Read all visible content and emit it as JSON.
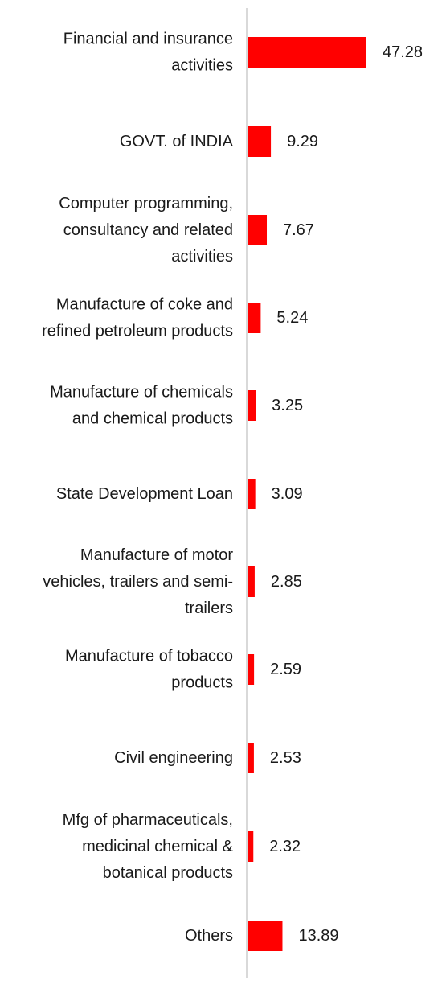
{
  "chart_data": {
    "type": "bar",
    "orientation": "horizontal",
    "title": "",
    "xlabel": "",
    "ylabel": "",
    "grid": false,
    "legend": "none",
    "bar_color": "#ff0000",
    "axis_color": "#d9d9d9",
    "xlim": [
      0,
      50
    ],
    "categories": [
      [
        "Financial and insurance",
        "activities"
      ],
      [
        "GOVT. of INDIA"
      ],
      [
        "Computer programming,",
        "consultancy and related",
        "activities"
      ],
      [
        "Manufacture of coke and",
        "refined petroleum products"
      ],
      [
        "Manufacture of chemicals",
        "and chemical products"
      ],
      [
        "State Development Loan"
      ],
      [
        "Manufacture of motor",
        "vehicles, trailers and semi-",
        "trailers"
      ],
      [
        "Manufacture of tobacco",
        "products"
      ],
      [
        "Civil engineering"
      ],
      [
        "Mfg of pharmaceuticals,",
        "medicinal chemical &",
        "botanical products"
      ],
      [
        "Others"
      ]
    ],
    "values": [
      47.28,
      9.29,
      7.67,
      5.24,
      3.25,
      3.09,
      2.85,
      2.59,
      2.53,
      2.32,
      13.89
    ],
    "value_labels": [
      "47.28",
      "9.29",
      "7.67",
      "5.24",
      "3.25",
      "3.09",
      "2.85",
      "2.59",
      "2.53",
      "2.32",
      "13.89"
    ]
  }
}
